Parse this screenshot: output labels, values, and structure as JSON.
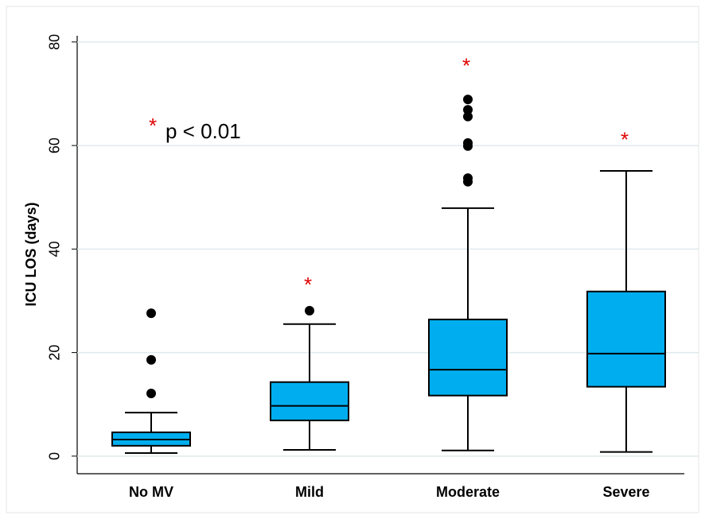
{
  "chart_data": {
    "type": "box",
    "y_label": "ICU LOS (days)",
    "categories": [
      "No MV",
      "Mild",
      "Moderate",
      "Severe"
    ],
    "color": "#00aeef",
    "boxes": [
      {
        "whislo": 0.6,
        "q1": 2.0,
        "med": 3.2,
        "q3": 4.6,
        "whishi": 8.4,
        "fliers": [
          12.1,
          18.6,
          27.6
        ]
      },
      {
        "whislo": 1.2,
        "q1": 6.9,
        "med": 9.7,
        "q3": 14.3,
        "whishi": 25.5,
        "fliers": [
          28.1
        ]
      },
      {
        "whislo": 1.1,
        "q1": 11.7,
        "med": 16.7,
        "q3": 26.4,
        "whishi": 47.9,
        "fliers": [
          53.0,
          53.7,
          59.9,
          60.5,
          65.6,
          66.9,
          68.9
        ]
      },
      {
        "whislo": 0.8,
        "q1": 13.4,
        "med": 19.8,
        "q3": 31.8,
        "whishi": 55.1,
        "fliers": []
      }
    ],
    "annotations": [
      {
        "text": "*",
        "category": "Mild",
        "y": 33.6
      },
      {
        "text": "*",
        "category": "Moderate",
        "y": 75.9
      },
      {
        "text": "*",
        "category": "Severe",
        "y": 61.6
      }
    ],
    "significance_note": {
      "marker": "*",
      "text": "p < 0.01"
    },
    "ylim": [
      -3.4,
      81.2
    ],
    "yticks": [
      0,
      20,
      40,
      60,
      80
    ],
    "grid": true
  }
}
